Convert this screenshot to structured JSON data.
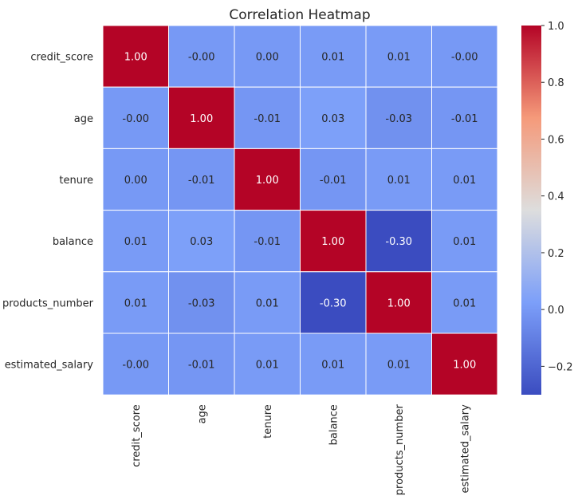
{
  "chart_data": {
    "type": "heatmap",
    "title": "Correlation Heatmap",
    "xlabel": "",
    "ylabel": "",
    "x_categories": [
      "credit_score",
      "age",
      "tenure",
      "balance",
      "products_number",
      "estimated_salary"
    ],
    "y_categories": [
      "credit_score",
      "age",
      "tenure",
      "balance",
      "products_number",
      "estimated_salary"
    ],
    "values": [
      [
        1.0,
        -0.0,
        0.0,
        0.01,
        0.01,
        -0.0
      ],
      [
        -0.0,
        1.0,
        -0.01,
        0.03,
        -0.03,
        -0.01
      ],
      [
        0.0,
        -0.01,
        1.0,
        -0.01,
        0.01,
        0.01
      ],
      [
        0.01,
        0.03,
        -0.01,
        1.0,
        -0.3,
        0.01
      ],
      [
        0.01,
        -0.03,
        0.01,
        -0.3,
        1.0,
        0.01
      ],
      [
        -0.0,
        -0.01,
        0.01,
        0.01,
        0.01,
        1.0
      ]
    ],
    "cell_labels": [
      [
        "1.00",
        "-0.00",
        "0.00",
        "0.01",
        "0.01",
        "-0.00"
      ],
      [
        "-0.00",
        "1.00",
        "-0.01",
        "0.03",
        "-0.03",
        "-0.01"
      ],
      [
        "0.00",
        "-0.01",
        "1.00",
        "-0.01",
        "0.01",
        "0.01"
      ],
      [
        "0.01",
        "0.03",
        "-0.01",
        "1.00",
        "-0.30",
        "0.01"
      ],
      [
        "0.01",
        "-0.03",
        "0.01",
        "-0.30",
        "1.00",
        "0.01"
      ],
      [
        "-0.00",
        "-0.01",
        "0.01",
        "0.01",
        "0.01",
        "1.00"
      ]
    ],
    "colormap": "coolwarm",
    "vmin": -0.3,
    "vmax": 1.0,
    "colorbar": {
      "position": "right",
      "ticks": [
        -0.2,
        0.0,
        0.2,
        0.4,
        0.6,
        0.8,
        1.0
      ],
      "tick_labels": [
        "−0.2",
        "0.0",
        "0.2",
        "0.4",
        "0.6",
        "0.8",
        "1.0"
      ]
    },
    "grid": false,
    "cell_border_color": "#ffffff"
  }
}
